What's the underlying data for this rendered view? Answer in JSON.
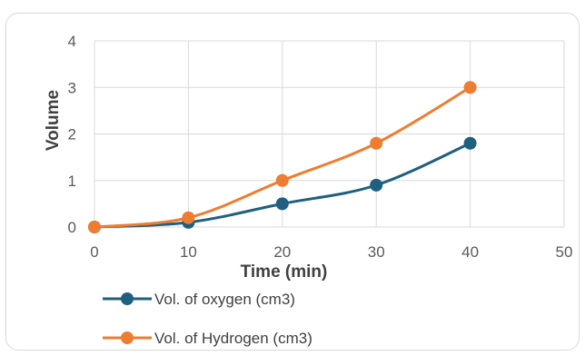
{
  "chart_data": {
    "type": "line",
    "title": "",
    "xlabel": "Time (min)",
    "ylabel": "Volume",
    "x": [
      0,
      10,
      20,
      30,
      40
    ],
    "xlim": [
      0,
      50
    ],
    "ylim": [
      0,
      4
    ],
    "x_ticks": [
      "0",
      "10",
      "20",
      "30",
      "40",
      "50"
    ],
    "y_ticks": [
      "0",
      "1",
      "2",
      "3",
      "4"
    ],
    "grid": true,
    "smooth": true,
    "legend_position": "bottom-left",
    "series": [
      {
        "name": "Vol. of oxygen (cm3)",
        "color": "#1f5f7f",
        "values": [
          0,
          0.1,
          0.5,
          0.9,
          1.8
        ]
      },
      {
        "name": "Vol. of Hydrogen (cm3)",
        "color": "#ed7d31",
        "values": [
          0,
          0.2,
          1.0,
          1.8,
          3.0
        ]
      }
    ]
  }
}
